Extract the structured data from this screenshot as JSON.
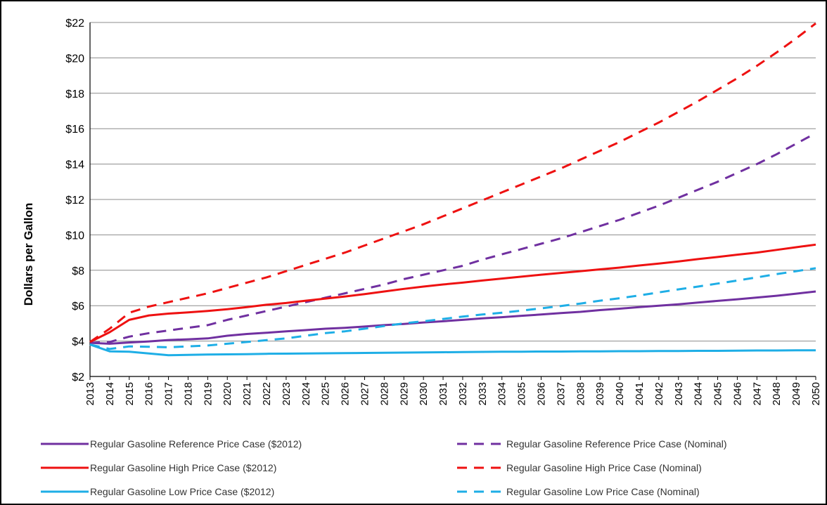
{
  "chart_data": {
    "type": "line",
    "ylabel": "Dollars  per Gallon",
    "xlabel": "",
    "ylim": [
      2,
      22
    ],
    "yticks": [
      "$2",
      "$4",
      "$6",
      "$8",
      "$10",
      "$12",
      "$14",
      "$16",
      "$18",
      "$20",
      "$22"
    ],
    "grid": "horizontal",
    "legend_position": "bottom",
    "x": [
      2013,
      2014,
      2015,
      2016,
      2017,
      2018,
      2019,
      2020,
      2021,
      2022,
      2023,
      2024,
      2025,
      2026,
      2027,
      2028,
      2029,
      2030,
      2031,
      2032,
      2033,
      2034,
      2035,
      2036,
      2037,
      2038,
      2039,
      2040,
      2041,
      2042,
      2043,
      2044,
      2045,
      2046,
      2047,
      2048,
      2049,
      2050
    ],
    "series": [
      {
        "name": "Regular Gasoline Reference Price Case ($2012)",
        "color": "#7030a0",
        "style": "solid",
        "values": [
          3.9,
          3.85,
          3.92,
          3.98,
          4.06,
          4.1,
          4.15,
          4.3,
          4.4,
          4.47,
          4.55,
          4.62,
          4.7,
          4.75,
          4.82,
          4.9,
          4.97,
          5.05,
          5.12,
          5.2,
          5.28,
          5.35,
          5.43,
          5.5,
          5.58,
          5.65,
          5.75,
          5.83,
          5.92,
          6.0,
          6.08,
          6.18,
          6.27,
          6.36,
          6.46,
          6.56,
          6.68,
          6.8
        ]
      },
      {
        "name": "Regular Gasoline Reference Price Case (Nominal)",
        "color": "#7030a0",
        "style": "dashed",
        "values": [
          3.9,
          3.95,
          4.25,
          4.45,
          4.6,
          4.75,
          4.9,
          5.2,
          5.45,
          5.7,
          5.95,
          6.2,
          6.45,
          6.7,
          6.95,
          7.2,
          7.5,
          7.75,
          8.0,
          8.25,
          8.6,
          8.9,
          9.2,
          9.5,
          9.8,
          10.15,
          10.5,
          10.85,
          11.25,
          11.65,
          12.1,
          12.55,
          13.0,
          13.5,
          14.0,
          14.55,
          15.15,
          15.75
        ]
      },
      {
        "name": "Regular Gasoline High Price Case ($2012)",
        "color": "#ee1111",
        "style": "solid",
        "values": [
          3.95,
          4.5,
          5.2,
          5.45,
          5.55,
          5.62,
          5.7,
          5.8,
          5.92,
          6.05,
          6.15,
          6.28,
          6.4,
          6.52,
          6.65,
          6.8,
          6.95,
          7.08,
          7.2,
          7.3,
          7.42,
          7.53,
          7.64,
          7.75,
          7.85,
          7.95,
          8.05,
          8.15,
          8.27,
          8.38,
          8.5,
          8.63,
          8.75,
          8.88,
          9.0,
          9.15,
          9.3,
          9.45
        ]
      },
      {
        "name": "Regular Gasoline High Price Case (Nominal)",
        "color": "#ee1111",
        "style": "dashed",
        "values": [
          3.95,
          4.7,
          5.6,
          5.95,
          6.2,
          6.45,
          6.7,
          7.0,
          7.3,
          7.6,
          7.95,
          8.3,
          8.65,
          9.0,
          9.4,
          9.8,
          10.2,
          10.6,
          11.05,
          11.5,
          11.95,
          12.4,
          12.85,
          13.3,
          13.75,
          14.25,
          14.75,
          15.25,
          15.8,
          16.35,
          16.95,
          17.55,
          18.2,
          18.85,
          19.55,
          20.3,
          21.1,
          21.95
        ]
      },
      {
        "name": "Regular Gasoline Low Price Case ($2012)",
        "color": "#1eaee6",
        "style": "solid",
        "values": [
          3.8,
          3.42,
          3.4,
          3.3,
          3.2,
          3.22,
          3.24,
          3.25,
          3.26,
          3.28,
          3.29,
          3.3,
          3.31,
          3.32,
          3.33,
          3.34,
          3.35,
          3.36,
          3.37,
          3.38,
          3.39,
          3.4,
          3.4,
          3.41,
          3.41,
          3.42,
          3.42,
          3.43,
          3.43,
          3.44,
          3.44,
          3.45,
          3.45,
          3.46,
          3.47,
          3.47,
          3.48,
          3.48
        ]
      },
      {
        "name": "Regular Gasoline Low Price Case (Nominal)",
        "color": "#1eaee6",
        "style": "dashed",
        "values": [
          3.8,
          3.55,
          3.7,
          3.68,
          3.65,
          3.7,
          3.75,
          3.85,
          3.95,
          4.05,
          4.15,
          4.3,
          4.45,
          4.55,
          4.7,
          4.85,
          5.0,
          5.12,
          5.25,
          5.38,
          5.5,
          5.6,
          5.72,
          5.85,
          5.98,
          6.12,
          6.28,
          6.42,
          6.58,
          6.75,
          6.92,
          7.08,
          7.25,
          7.42,
          7.6,
          7.78,
          7.95,
          8.12
        ]
      }
    ]
  },
  "legend": {
    "items": [
      {
        "label": "Regular Gasoline Reference Price Case ($2012)",
        "color": "#7030a0",
        "style": "solid"
      },
      {
        "label": "Regular Gasoline Reference Price Case (Nominal)",
        "color": "#7030a0",
        "style": "dashed"
      },
      {
        "label": "Regular Gasoline High Price Case ($2012)",
        "color": "#ee1111",
        "style": "solid"
      },
      {
        "label": "Regular Gasoline High Price Case (Nominal)",
        "color": "#ee1111",
        "style": "dashed"
      },
      {
        "label": "Regular Gasoline Low Price Case ($2012)",
        "color": "#1eaee6",
        "style": "solid"
      },
      {
        "label": "Regular Gasoline Low Price Case (Nominal)",
        "color": "#1eaee6",
        "style": "dashed"
      }
    ]
  }
}
